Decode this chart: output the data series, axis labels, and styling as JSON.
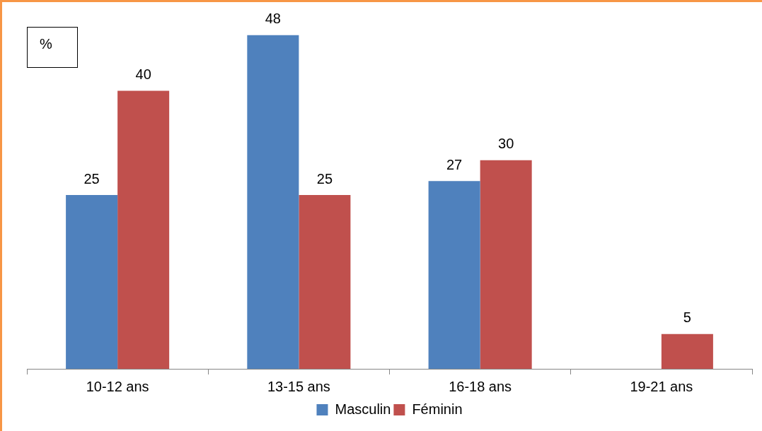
{
  "chart_data": {
    "type": "bar",
    "ylabel": "%",
    "categories": [
      "10-12 ans",
      "13-15 ans",
      "16-18 ans",
      "19-21 ans"
    ],
    "series": [
      {
        "name": "Masculin",
        "color": "#4f81bd",
        "values": [
          25,
          48,
          27,
          null
        ]
      },
      {
        "name": "Féminin",
        "color": "#c0504d",
        "values": [
          40,
          25,
          30,
          5
        ]
      }
    ],
    "data_labels": true,
    "legend": "bottom"
  }
}
